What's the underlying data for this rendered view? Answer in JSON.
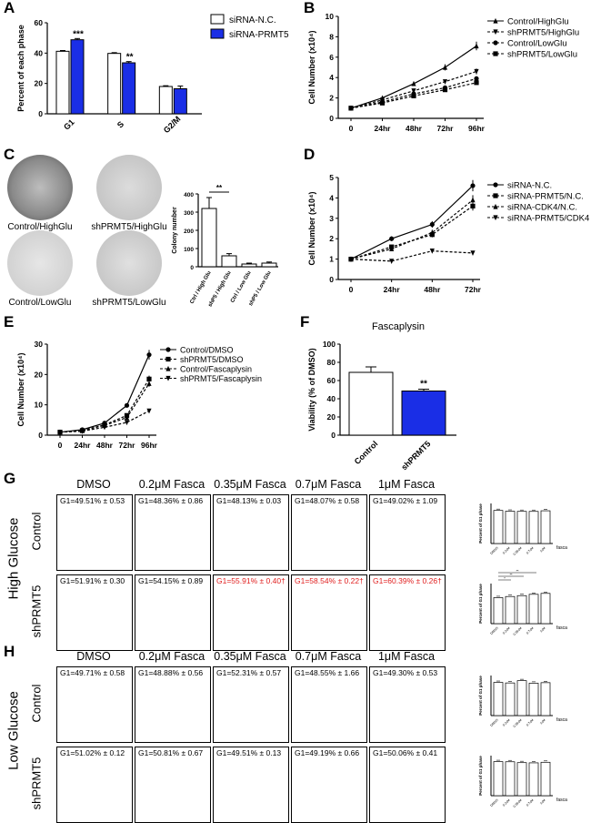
{
  "panel_letters": [
    "A",
    "B",
    "C",
    "D",
    "E",
    "F",
    "G",
    "H"
  ],
  "colors": {
    "white_bar": "#ffffff",
    "blue_bar": "#1a2ee6",
    "red_text": "#e02020",
    "black": "#000000"
  },
  "chart_data": [
    {
      "id": "A",
      "type": "bar",
      "categories": [
        "G1",
        "S",
        "G2/M"
      ],
      "ylabel": "Percent of each phase",
      "ylim": [
        0,
        60
      ],
      "yticks": [
        0,
        20,
        40,
        60
      ],
      "series": [
        {
          "name": "siRNA-N.C.",
          "values": [
            41.2,
            39.8,
            18.0
          ],
          "errors": [
            0.5,
            0.5,
            0.5
          ],
          "color": "#ffffff"
        },
        {
          "name": "siRNA-PRMT5",
          "values": [
            48.8,
            33.6,
            16.5
          ],
          "errors": [
            0.8,
            0.8,
            1.8
          ],
          "color": "#1a2ee6"
        }
      ],
      "sig": [
        "***",
        "**",
        ""
      ],
      "legend_position": "top-right"
    },
    {
      "id": "B",
      "type": "line",
      "categories": [
        "0",
        "24hr",
        "48hr",
        "72hr",
        "96hr"
      ],
      "ylabel": "Cell Number (x10⁴)",
      "ylim": [
        0,
        10
      ],
      "yticks": [
        0,
        2,
        4,
        6,
        8,
        10
      ],
      "series": [
        {
          "name": "Control/HighGlu",
          "values": [
            1.0,
            2.0,
            3.4,
            5.0,
            7.1
          ],
          "marker": "triangle-up",
          "dash": false
        },
        {
          "name": "shPRMT5/HighGlu",
          "values": [
            1.0,
            1.8,
            2.7,
            3.6,
            4.6
          ],
          "marker": "triangle-down",
          "dash": true
        },
        {
          "name": "Control/LowGlu",
          "values": [
            1.0,
            1.6,
            2.4,
            3.0,
            3.9
          ],
          "marker": "circle",
          "dash": true
        },
        {
          "name": "shPRMT5/LowGlu",
          "values": [
            1.0,
            1.5,
            2.2,
            2.8,
            3.5
          ],
          "marker": "square",
          "dash": true
        }
      ],
      "legend_position": "top-right"
    },
    {
      "id": "C",
      "type": "bar",
      "categories": [
        "Ctrl / High Glu",
        "shP5 / High Glu",
        "Ctrl / Low Glu",
        "shP5 / Low Glu"
      ],
      "ylabel": "Colony number",
      "ylim": [
        0,
        400
      ],
      "yticks": [
        0,
        100,
        200,
        300,
        400
      ],
      "series": [
        {
          "name": "",
          "values": [
            320,
            60,
            15,
            20
          ],
          "errors": [
            60,
            12,
            5,
            6
          ],
          "color": "#ffffff"
        }
      ],
      "sig_label": "**",
      "dish_labels": [
        "Control/HighGlu",
        "shPRMT5/HighGlu",
        "Control/LowGlu",
        "shPRMT5/LowGlu"
      ]
    },
    {
      "id": "D",
      "type": "line",
      "categories": [
        "0",
        "24hr",
        "48hr",
        "72hr"
      ],
      "ylabel": "Cell Number (x10⁴)",
      "ylim": [
        0,
        5
      ],
      "yticks": [
        0,
        1,
        2,
        3,
        4,
        5
      ],
      "series": [
        {
          "name": "siRNA-N.C.",
          "values": [
            1.0,
            2.0,
            2.7,
            4.6
          ],
          "marker": "circle",
          "dash": false
        },
        {
          "name": "siRNA-PRMT5/N.C.",
          "values": [
            1.0,
            1.6,
            2.2,
            3.6
          ],
          "marker": "square",
          "dash": true
        },
        {
          "name": "siRNA-CDK4/N.C.",
          "values": [
            1.0,
            1.5,
            2.3,
            3.9
          ],
          "marker": "triangle-up",
          "dash": true
        },
        {
          "name": "siRNA-PRMT5/CDK4",
          "values": [
            1.0,
            0.9,
            1.4,
            1.3
          ],
          "marker": "triangle-down",
          "dash": true
        }
      ],
      "legend_position": "right"
    },
    {
      "id": "E",
      "type": "line",
      "categories": [
        "0",
        "24hr",
        "48hr",
        "72hr",
        "96hr"
      ],
      "ylabel": "Cell Number (x10⁴)",
      "ylim": [
        0,
        30
      ],
      "yticks": [
        0,
        10,
        20,
        30
      ],
      "series": [
        {
          "name": "Control/DMSO",
          "values": [
            1.0,
            1.8,
            4.0,
            9.8,
            26.5
          ],
          "marker": "circle",
          "dash": false
        },
        {
          "name": "shPRMT5/DMSO",
          "values": [
            1.0,
            1.5,
            3.4,
            6.5,
            18.5
          ],
          "marker": "square",
          "dash": true
        },
        {
          "name": "Control/Fascaplysin",
          "values": [
            1.0,
            1.5,
            3.2,
            5.8,
            17.0
          ],
          "marker": "triangle-up",
          "dash": true
        },
        {
          "name": "shPRMT5/Fascaplysin",
          "values": [
            1.0,
            1.3,
            2.6,
            4.2,
            8.0
          ],
          "marker": "triangle-down",
          "dash": true
        }
      ],
      "legend_position": "top-left"
    },
    {
      "id": "F",
      "type": "bar",
      "title": "Fascaplysin",
      "categories": [
        "Control",
        "shPRMT5"
      ],
      "ylabel": "Viability (% of DMSO)",
      "ylim": [
        0,
        100
      ],
      "yticks": [
        0,
        20,
        40,
        60,
        80,
        100
      ],
      "series": [
        {
          "name": "",
          "values": [
            69,
            48.5
          ],
          "errors": [
            6,
            2
          ],
          "colors": [
            "#ffffff",
            "#1a2ee6"
          ]
        }
      ],
      "sig": [
        "",
        "**"
      ]
    }
  ],
  "flow": {
    "conditions": [
      "DMSO",
      "0.2μM Fasca",
      "0.35μM Fasca",
      "0.7μM Fasca",
      "1μM Fasca"
    ],
    "G": {
      "group_label": "High Glucose",
      "rows": [
        {
          "label": "Control",
          "g1": [
            "G1=49.51% ± 0.53",
            "G1=48.36% ± 0.86",
            "G1=48.13% ± 0.03",
            "G1=48.07% ± 0.58",
            "G1=49.02% ± 1.09"
          ],
          "red": [
            false,
            false,
            false,
            false,
            false
          ]
        },
        {
          "label": "shPRMT5",
          "g1": [
            "G1=51.91% ± 0.30",
            "G1=54.15% ± 0.89",
            "G1=55.91% ± 0.40†",
            "G1=58.54% ± 0.22†",
            "G1=60.39% ± 0.26†"
          ],
          "red": [
            false,
            false,
            true,
            true,
            true
          ]
        }
      ],
      "side_charts": [
        {
          "ylabel": "Percent of G1 phase",
          "values": [
            49.51,
            48.36,
            48.13,
            48.07,
            49.02
          ],
          "ylim": [
            0,
            60
          ]
        },
        {
          "ylabel": "Percent of G1 phase",
          "values": [
            51.91,
            54.15,
            55.91,
            58.54,
            60.39
          ],
          "ylim": [
            0,
            80
          ],
          "sig": [
            "*",
            "**",
            "**"
          ]
        }
      ]
    },
    "H": {
      "group_label": "Low Glucose",
      "rows": [
        {
          "label": "Control",
          "g1": [
            "G1=49.71% ± 0.58",
            "G1=48.88% ± 0.56",
            "G1=52.31% ± 0.57",
            "G1=48.55% ± 1.66",
            "G1=49.30% ± 0.53"
          ],
          "red": [
            false,
            false,
            false,
            false,
            false
          ]
        },
        {
          "label": "shPRMT5",
          "g1": [
            "G1=51.02% ± 0.12",
            "G1=50.81% ± 0.67",
            "G1=49.51% ± 0.13",
            "G1=49.19% ± 0.66",
            "G1=50.06% ± 0.41"
          ],
          "red": [
            false,
            false,
            false,
            false,
            false
          ]
        }
      ],
      "side_charts": [
        {
          "ylabel": "Percent of G1 phase",
          "values": [
            49.71,
            48.88,
            52.31,
            48.55,
            49.3
          ],
          "ylim": [
            0,
            60
          ]
        },
        {
          "ylabel": "Percent of G1 phase",
          "values": [
            51.02,
            50.81,
            49.51,
            49.19,
            50.06
          ],
          "ylim": [
            0,
            60
          ]
        }
      ]
    },
    "side_categories": [
      "DMSO",
      "0.2uM",
      "0.35uM",
      "0.7uM",
      "1uM"
    ],
    "side_xlabel": "fasca"
  }
}
